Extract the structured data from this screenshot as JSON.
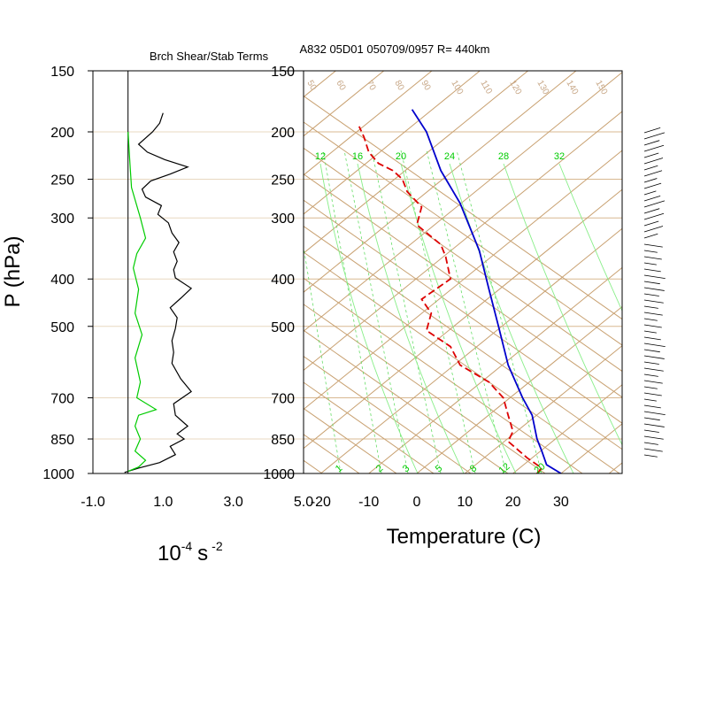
{
  "chart_data": [
    {
      "type": "line",
      "title": "Brch Shear/Stab Terms",
      "ylabel": "P (hPa)",
      "xlabel": "10^-4 s^-2",
      "xlabel_parts": {
        "base": "10",
        "exp1": "-4",
        "unit": "s",
        "exp2": "-2"
      },
      "xlim": [
        -1.0,
        5.0
      ],
      "xticks": [
        -1.0,
        1.0,
        3.0,
        5.0
      ],
      "xtick_labels": [
        "-1.0",
        "1.0",
        "3.0",
        "5.0"
      ],
      "ylim": [
        1000,
        150
      ],
      "yscale": "log",
      "yticks": [
        150,
        200,
        250,
        300,
        400,
        500,
        700,
        850,
        1000
      ],
      "ytick_labels": [
        "150",
        "200",
        "250",
        "300",
        "400",
        "500",
        "700",
        "850",
        "1000"
      ],
      "series": [
        {
          "color": "#000000",
          "points": [
            [
              1.0,
              183
            ],
            [
              0.9,
              192
            ],
            [
              0.7,
              200
            ],
            [
              0.3,
              212
            ],
            [
              0.55,
              220
            ],
            [
              1.05,
              228
            ],
            [
              1.7,
              236
            ],
            [
              1.2,
              244
            ],
            [
              0.65,
              252
            ],
            [
              0.4,
              262
            ],
            [
              0.5,
              272
            ],
            [
              0.95,
              283
            ],
            [
              0.85,
              295
            ],
            [
              1.15,
              307
            ],
            [
              1.25,
              322
            ],
            [
              1.45,
              337
            ],
            [
              1.3,
              352
            ],
            [
              1.4,
              368
            ],
            [
              1.3,
              383
            ],
            [
              1.35,
              398
            ],
            [
              1.8,
              418
            ],
            [
              1.5,
              438
            ],
            [
              1.2,
              458
            ],
            [
              1.4,
              480
            ],
            [
              1.35,
              505
            ],
            [
              1.25,
              535
            ],
            [
              1.3,
              565
            ],
            [
              1.25,
              595
            ],
            [
              1.5,
              640
            ],
            [
              1.8,
              680
            ],
            [
              1.3,
              720
            ],
            [
              1.35,
              760
            ],
            [
              1.7,
              800
            ],
            [
              1.4,
              830
            ],
            [
              1.6,
              850
            ],
            [
              1.2,
              880
            ],
            [
              1.35,
              915
            ],
            [
              0.9,
              950
            ],
            [
              0.3,
              975
            ],
            [
              -0.1,
              995
            ]
          ]
        },
        {
          "color": "#00cc00",
          "points": [
            [
              0.0,
              200
            ],
            [
              0.05,
              230
            ],
            [
              0.1,
              260
            ],
            [
              0.35,
              300
            ],
            [
              0.5,
              330
            ],
            [
              0.25,
              355
            ],
            [
              0.15,
              380
            ],
            [
              0.3,
              420
            ],
            [
              0.2,
              470
            ],
            [
              0.4,
              520
            ],
            [
              0.2,
              580
            ],
            [
              0.35,
              650
            ],
            [
              0.25,
              700
            ],
            [
              0.8,
              740
            ],
            [
              0.3,
              760
            ],
            [
              0.2,
              800
            ],
            [
              0.35,
              850
            ],
            [
              0.2,
              900
            ],
            [
              0.5,
              940
            ],
            [
              0.3,
              970
            ],
            [
              0.0,
              990
            ]
          ]
        }
      ]
    },
    {
      "type": "line",
      "title": "A832 05D01 050709/0957 R= 440km",
      "xlabel": "Temperature (C)",
      "ylabel": "",
      "xlim": [
        -25,
        42
      ],
      "xticks": [
        -20,
        -10,
        0,
        10,
        20,
        30
      ],
      "xtick_labels": [
        "-20",
        "-10",
        "0",
        "10",
        "20",
        "30"
      ],
      "ylim": [
        1000,
        150
      ],
      "yscale": "log",
      "yticks": [
        150,
        200,
        250,
        300,
        400,
        500,
        700,
        850,
        1000
      ],
      "ytick_labels": [
        "150",
        "200",
        "250",
        "300",
        "400",
        "500",
        "700",
        "850",
        "1000"
      ],
      "skew_labels": [
        "50",
        "60",
        "70",
        "80",
        "90",
        "100",
        "110",
        "120",
        "130",
        "140",
        "150"
      ],
      "mixing_ratio_upper": [
        "12",
        "16",
        "20",
        "24",
        "28",
        "32"
      ],
      "mixing_ratio_lower": [
        "1",
        "2",
        "3",
        "5",
        "8",
        "12",
        "20"
      ],
      "series": [
        {
          "name": "",
          "color": "#0000cc",
          "points": [
            [
              30,
              1000
            ],
            [
              27,
              960
            ],
            [
              26,
              900
            ],
            [
              25,
              850
            ],
            [
              24,
              760
            ],
            [
              22,
              700
            ],
            [
              19,
              600
            ],
            [
              17,
              500
            ],
            [
              15,
              420
            ],
            [
              13,
              350
            ],
            [
              9,
              280
            ],
            [
              5,
              240
            ],
            [
              2,
              200
            ],
            [
              -1,
              180
            ]
          ]
        },
        {
          "name": "",
          "color": "#dd0000",
          "dashed": true,
          "points": [
            [
              25,
              1000
            ],
            [
              26,
              975
            ],
            [
              23,
              930
            ],
            [
              19,
              860
            ],
            [
              20,
              820
            ],
            [
              19,
              760
            ],
            [
              18,
              700
            ],
            [
              15,
              650
            ],
            [
              9,
              600
            ],
            [
              7,
              550
            ],
            [
              2,
              510
            ],
            [
              3,
              470
            ],
            [
              1,
              440
            ],
            [
              7,
              400
            ],
            [
              6,
              360
            ],
            [
              5,
              340
            ],
            [
              0,
              310
            ],
            [
              1,
              285
            ],
            [
              -2,
              265
            ],
            [
              -3,
              250
            ],
            [
              -5,
              240
            ],
            [
              -8,
              232
            ],
            [
              -10,
              220
            ],
            [
              -11,
              205
            ],
            [
              -12,
              195
            ]
          ]
        }
      ]
    }
  ],
  "wind_barbs": {
    "present": true,
    "color": "#000000"
  }
}
